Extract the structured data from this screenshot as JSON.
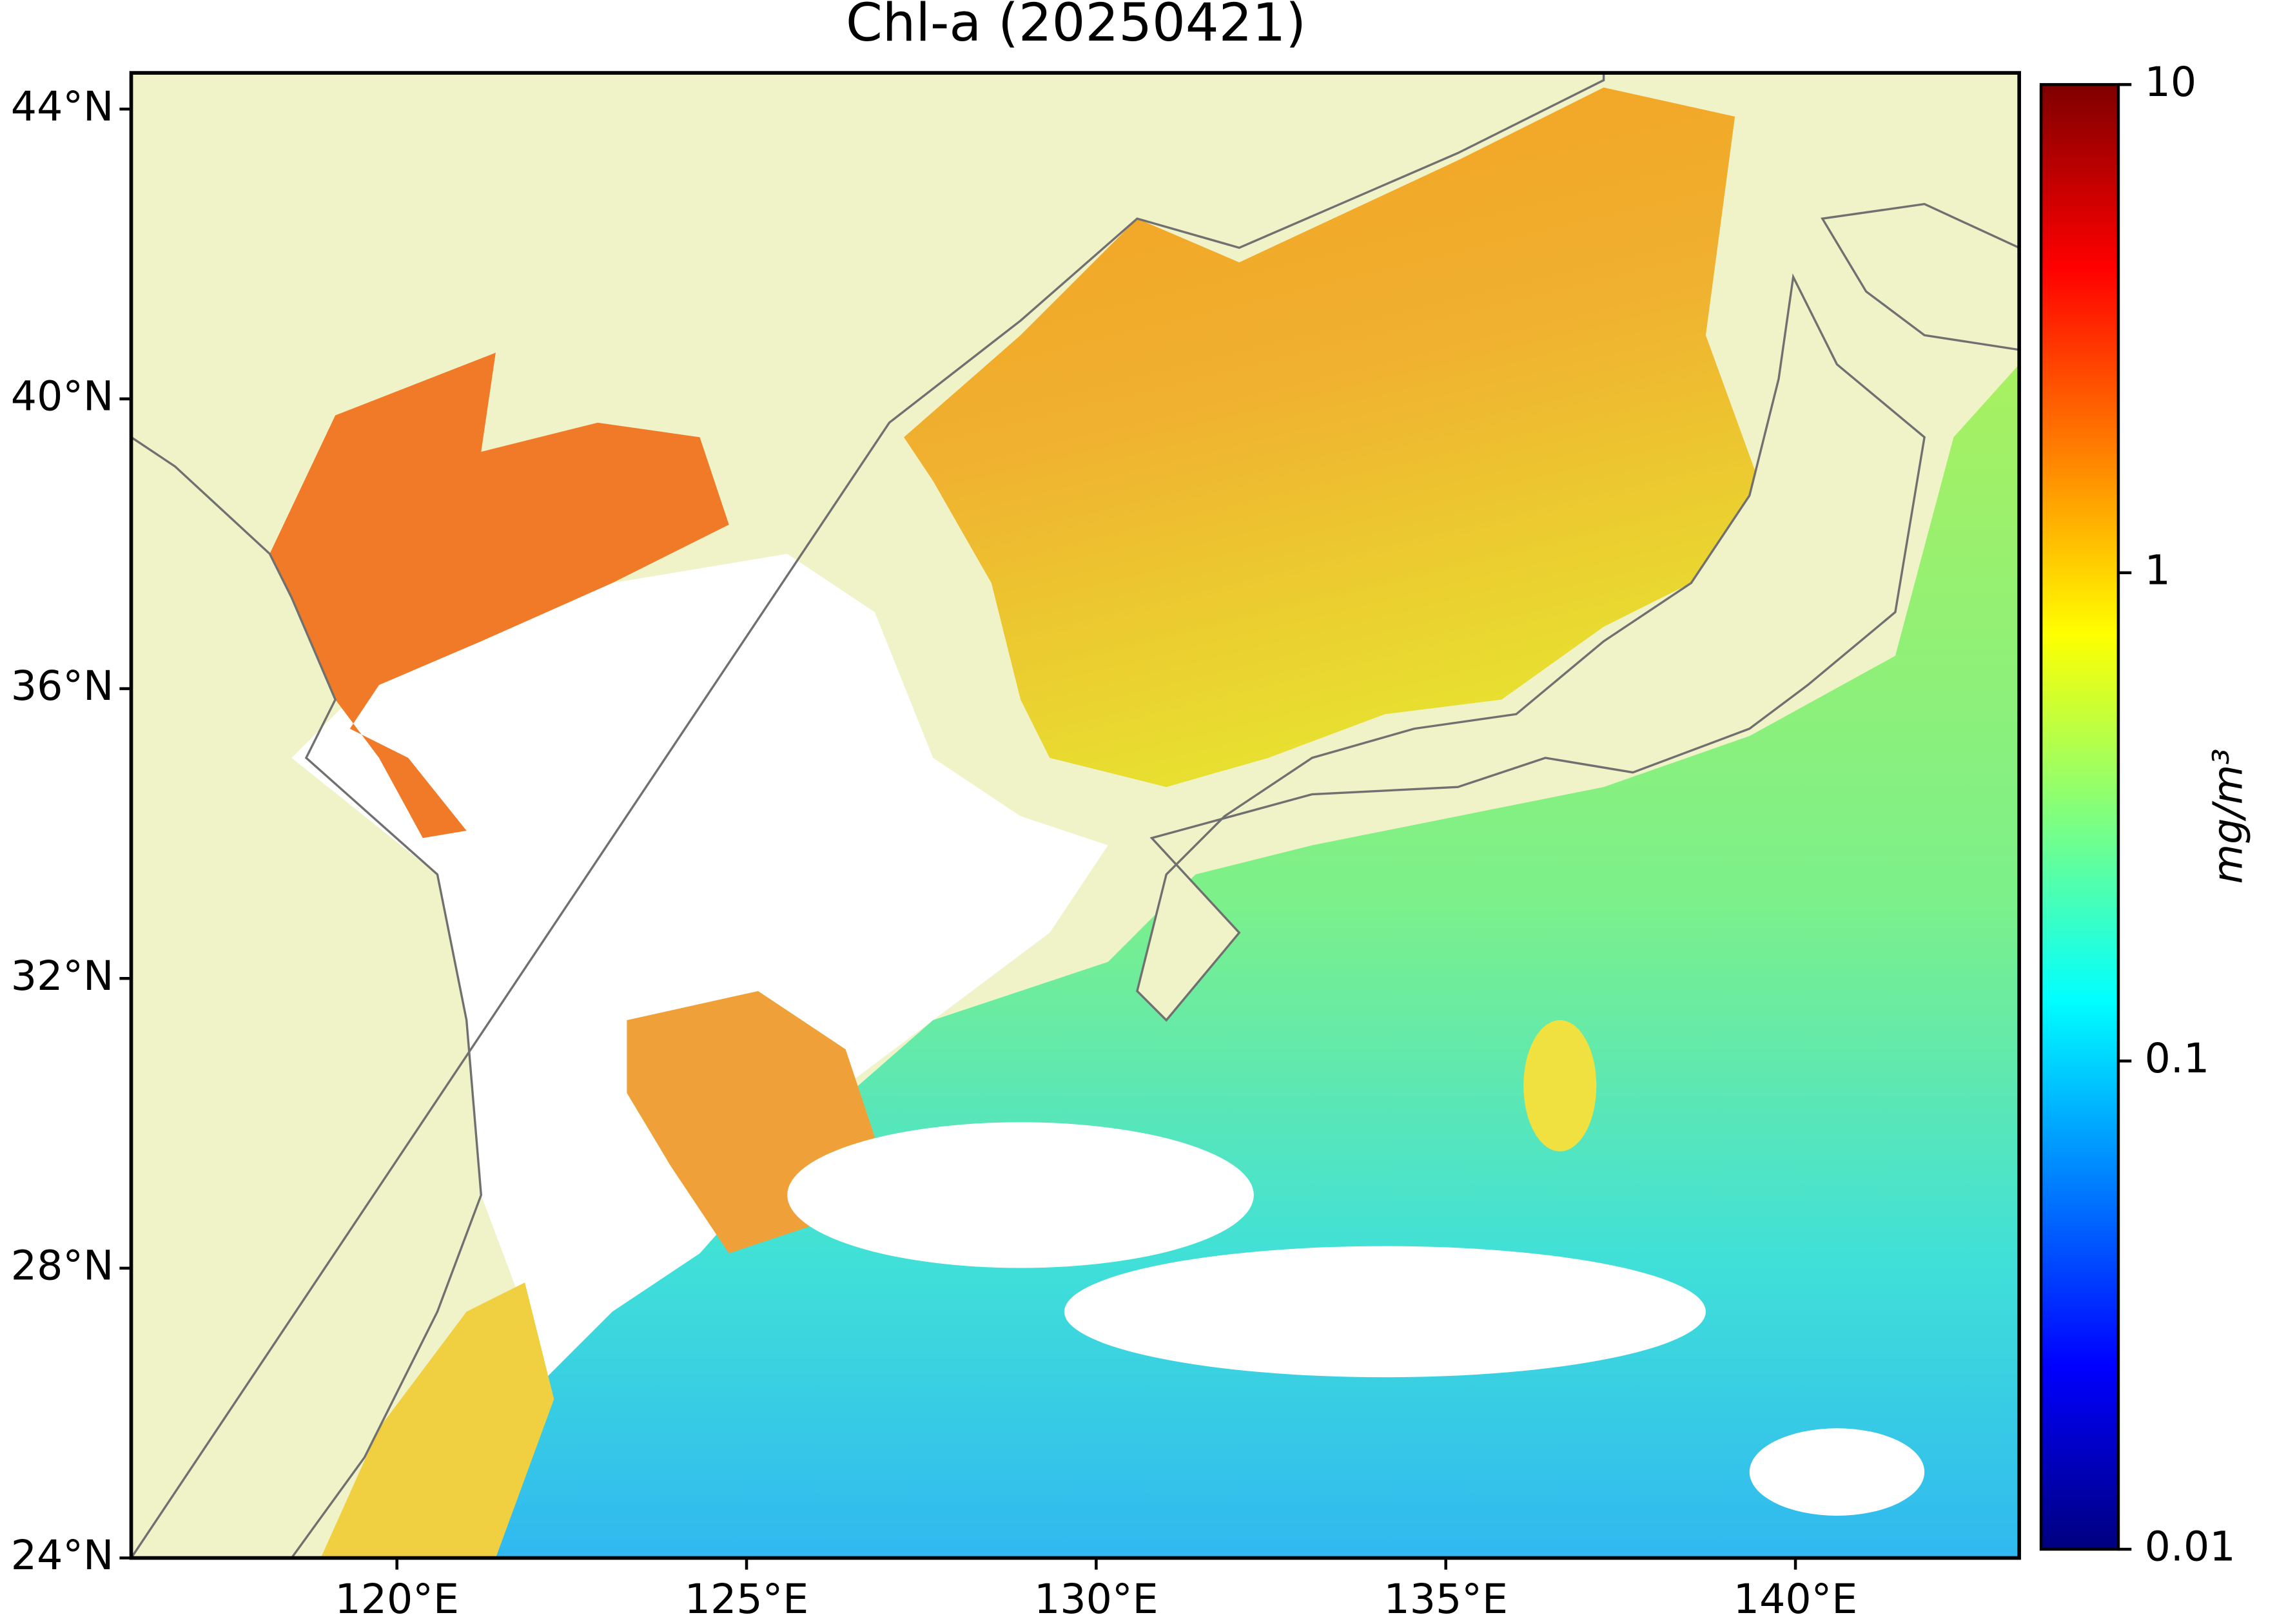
{
  "title": "Chl-a (20250421)",
  "map": {
    "xlim": [
      116.2,
      143.2
    ],
    "ylim": [
      24,
      44.5
    ],
    "xticks": [
      {
        "value": 120,
        "label": "120°E"
      },
      {
        "value": 125,
        "label": "125°E"
      },
      {
        "value": 130,
        "label": "130°E"
      },
      {
        "value": 135,
        "label": "135°E"
      },
      {
        "value": 140,
        "label": "140°E"
      }
    ],
    "yticks": [
      {
        "value": 24,
        "label": "24°N"
      },
      {
        "value": 28,
        "label": "28°N"
      },
      {
        "value": 32,
        "label": "32°N"
      },
      {
        "value": 36,
        "label": "36°N"
      },
      {
        "value": 40,
        "label": "40°N"
      },
      {
        "value": 44,
        "label": "44°N"
      }
    ]
  },
  "colorbar": {
    "label": "mg/m³",
    "log": true,
    "colormap": "jet",
    "lim": [
      0.01,
      10
    ],
    "ticks": [
      0.01,
      0.1,
      1,
      10
    ]
  }
}
